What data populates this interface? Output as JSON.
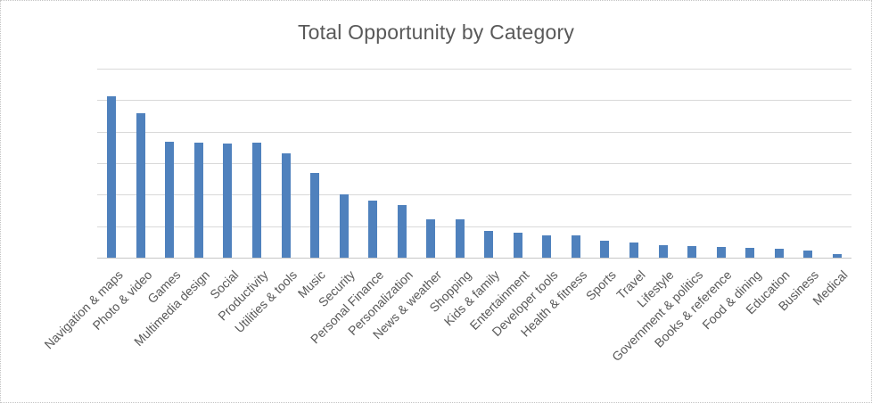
{
  "chart_data": {
    "type": "bar",
    "title": "Total Opportunity by Category",
    "xlabel": "",
    "ylabel": "",
    "categories": [
      "Navigation & maps",
      "Photo & video",
      "Games",
      "Multimedia design",
      "Social",
      "Productivity",
      "Utilities & tools",
      "Music",
      "Security",
      "Personal Finance",
      "Personalization",
      "News & weather",
      "Shopping",
      "Kids & family",
      "Entertainment",
      "Developer tools",
      "Health & fitness",
      "Sports",
      "Travel",
      "Lifestyle",
      "Government & politics",
      "Books & reference",
      "Food & dining",
      "Education",
      "Business",
      "Medical"
    ],
    "values": [
      5.13,
      4.59,
      3.69,
      3.66,
      3.63,
      3.65,
      3.31,
      2.7,
      2.02,
      1.81,
      1.66,
      1.21,
      1.23,
      0.85,
      0.79,
      0.72,
      0.7,
      0.55,
      0.48,
      0.39,
      0.37,
      0.34,
      0.31,
      0.29,
      0.24,
      0.11
    ],
    "ylim": [
      0,
      6
    ],
    "gridline_interval": 1,
    "y_axis_tick_labels": "none",
    "legend": "none",
    "grid": "horizontal",
    "colors": {
      "bar": "#4f81bd",
      "title_text": "#595959",
      "axis_text": "#595959",
      "gridline": "#d9d9d9",
      "axis_line": "#c6c6c6",
      "background": "#ffffff",
      "border": "#c3c3c3"
    }
  }
}
